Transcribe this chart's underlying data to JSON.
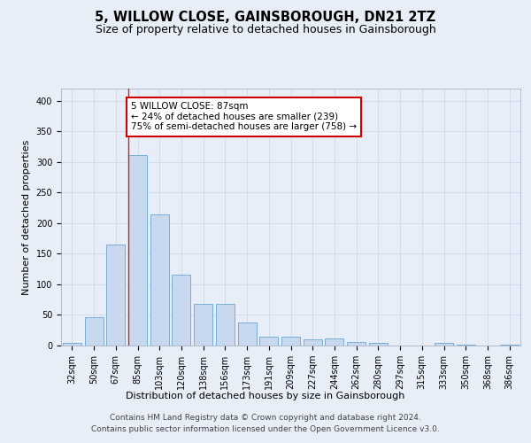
{
  "title": "5, WILLOW CLOSE, GAINSBOROUGH, DN21 2TZ",
  "subtitle": "Size of property relative to detached houses in Gainsborough",
  "xlabel": "Distribution of detached houses by size in Gainsborough",
  "ylabel": "Number of detached properties",
  "categories": [
    "32sqm",
    "50sqm",
    "67sqm",
    "85sqm",
    "103sqm",
    "120sqm",
    "138sqm",
    "156sqm",
    "173sqm",
    "191sqm",
    "209sqm",
    "227sqm",
    "244sqm",
    "262sqm",
    "280sqm",
    "297sqm",
    "315sqm",
    "333sqm",
    "350sqm",
    "368sqm",
    "386sqm"
  ],
  "values": [
    4,
    47,
    165,
    312,
    215,
    116,
    68,
    68,
    38,
    15,
    14,
    10,
    11,
    6,
    5,
    0,
    0,
    4,
    2,
    0,
    2
  ],
  "bar_color": "#c8d9ef",
  "bar_edge_color": "#7aaed6",
  "ref_bar_index": 3,
  "annotation_title": "5 WILLOW CLOSE: 87sqm",
  "annotation_line1": "← 24% of detached houses are smaller (239)",
  "annotation_line2": "75% of semi-detached houses are larger (758) →",
  "annotation_box_facecolor": "#ffffff",
  "annotation_box_edgecolor": "#cc0000",
  "footer_line1": "Contains HM Land Registry data © Crown copyright and database right 2024.",
  "footer_line2": "Contains public sector information licensed under the Open Government Licence v3.0.",
  "bg_color": "#e8eef8",
  "ylim": [
    0,
    420
  ],
  "yticks": [
    0,
    50,
    100,
    150,
    200,
    250,
    300,
    350,
    400
  ],
  "title_fontsize": 10.5,
  "subtitle_fontsize": 9,
  "axis_label_fontsize": 8,
  "tick_fontsize": 7,
  "annotation_fontsize": 7.5,
  "footer_fontsize": 6.5,
  "grid_color": "#d0d8e8",
  "ref_line_color": "#cc2222"
}
